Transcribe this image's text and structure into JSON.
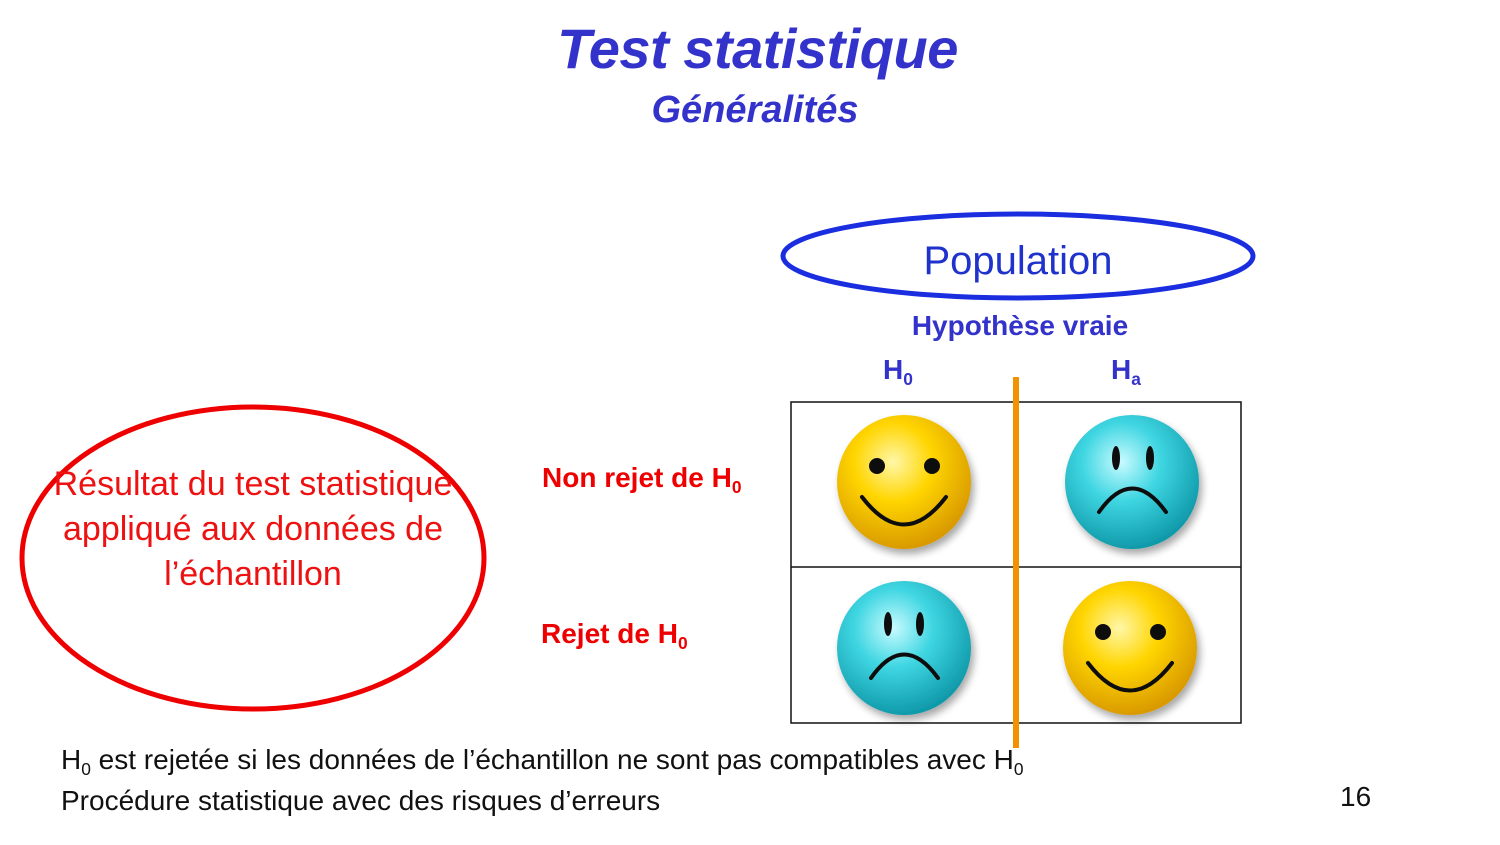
{
  "slide": {
    "title": "Test statistique",
    "subtitle": "Généralités",
    "page_number": "16"
  },
  "population": {
    "label": "Population",
    "hypothesis_label": "Hypothèse vraie",
    "col_h0": "H",
    "col_h0_sub": "0",
    "col_ha": "H",
    "col_ha_sub": "a"
  },
  "result": {
    "label": "Résultat du test statistique appliqué aux données de l’échantillon",
    "row_accept": "Non rejet de H",
    "row_accept_sub": "0",
    "row_reject": "Rejet de H",
    "row_reject_sub": "0"
  },
  "matrix": {
    "cells": [
      {
        "row": "Non rejet",
        "col": "H0",
        "face": "happy",
        "color": "#f2c200"
      },
      {
        "row": "Non rejet",
        "col": "Ha",
        "face": "sad",
        "color": "#2bc3d2"
      },
      {
        "row": "Rejet",
        "col": "H0",
        "face": "sad",
        "color": "#2bc3d2"
      },
      {
        "row": "Rejet",
        "col": "Ha",
        "face": "happy",
        "color": "#f2c200"
      }
    ],
    "divider_color": "#f39200"
  },
  "footer": {
    "line1_a": "H",
    "line1_a_sub": "0",
    "line1_b": " est rejetée si les données de l’échantillon ne sont pas compatibles avec H",
    "line1_b_sub": "0",
    "line2": "Procédure statistique avec des risques d’erreurs"
  },
  "colors": {
    "title": "#3333cc",
    "population_ellipse": "#1a2ee0",
    "result_ellipse": "#ee0000",
    "row_labels": "#ee0000"
  }
}
